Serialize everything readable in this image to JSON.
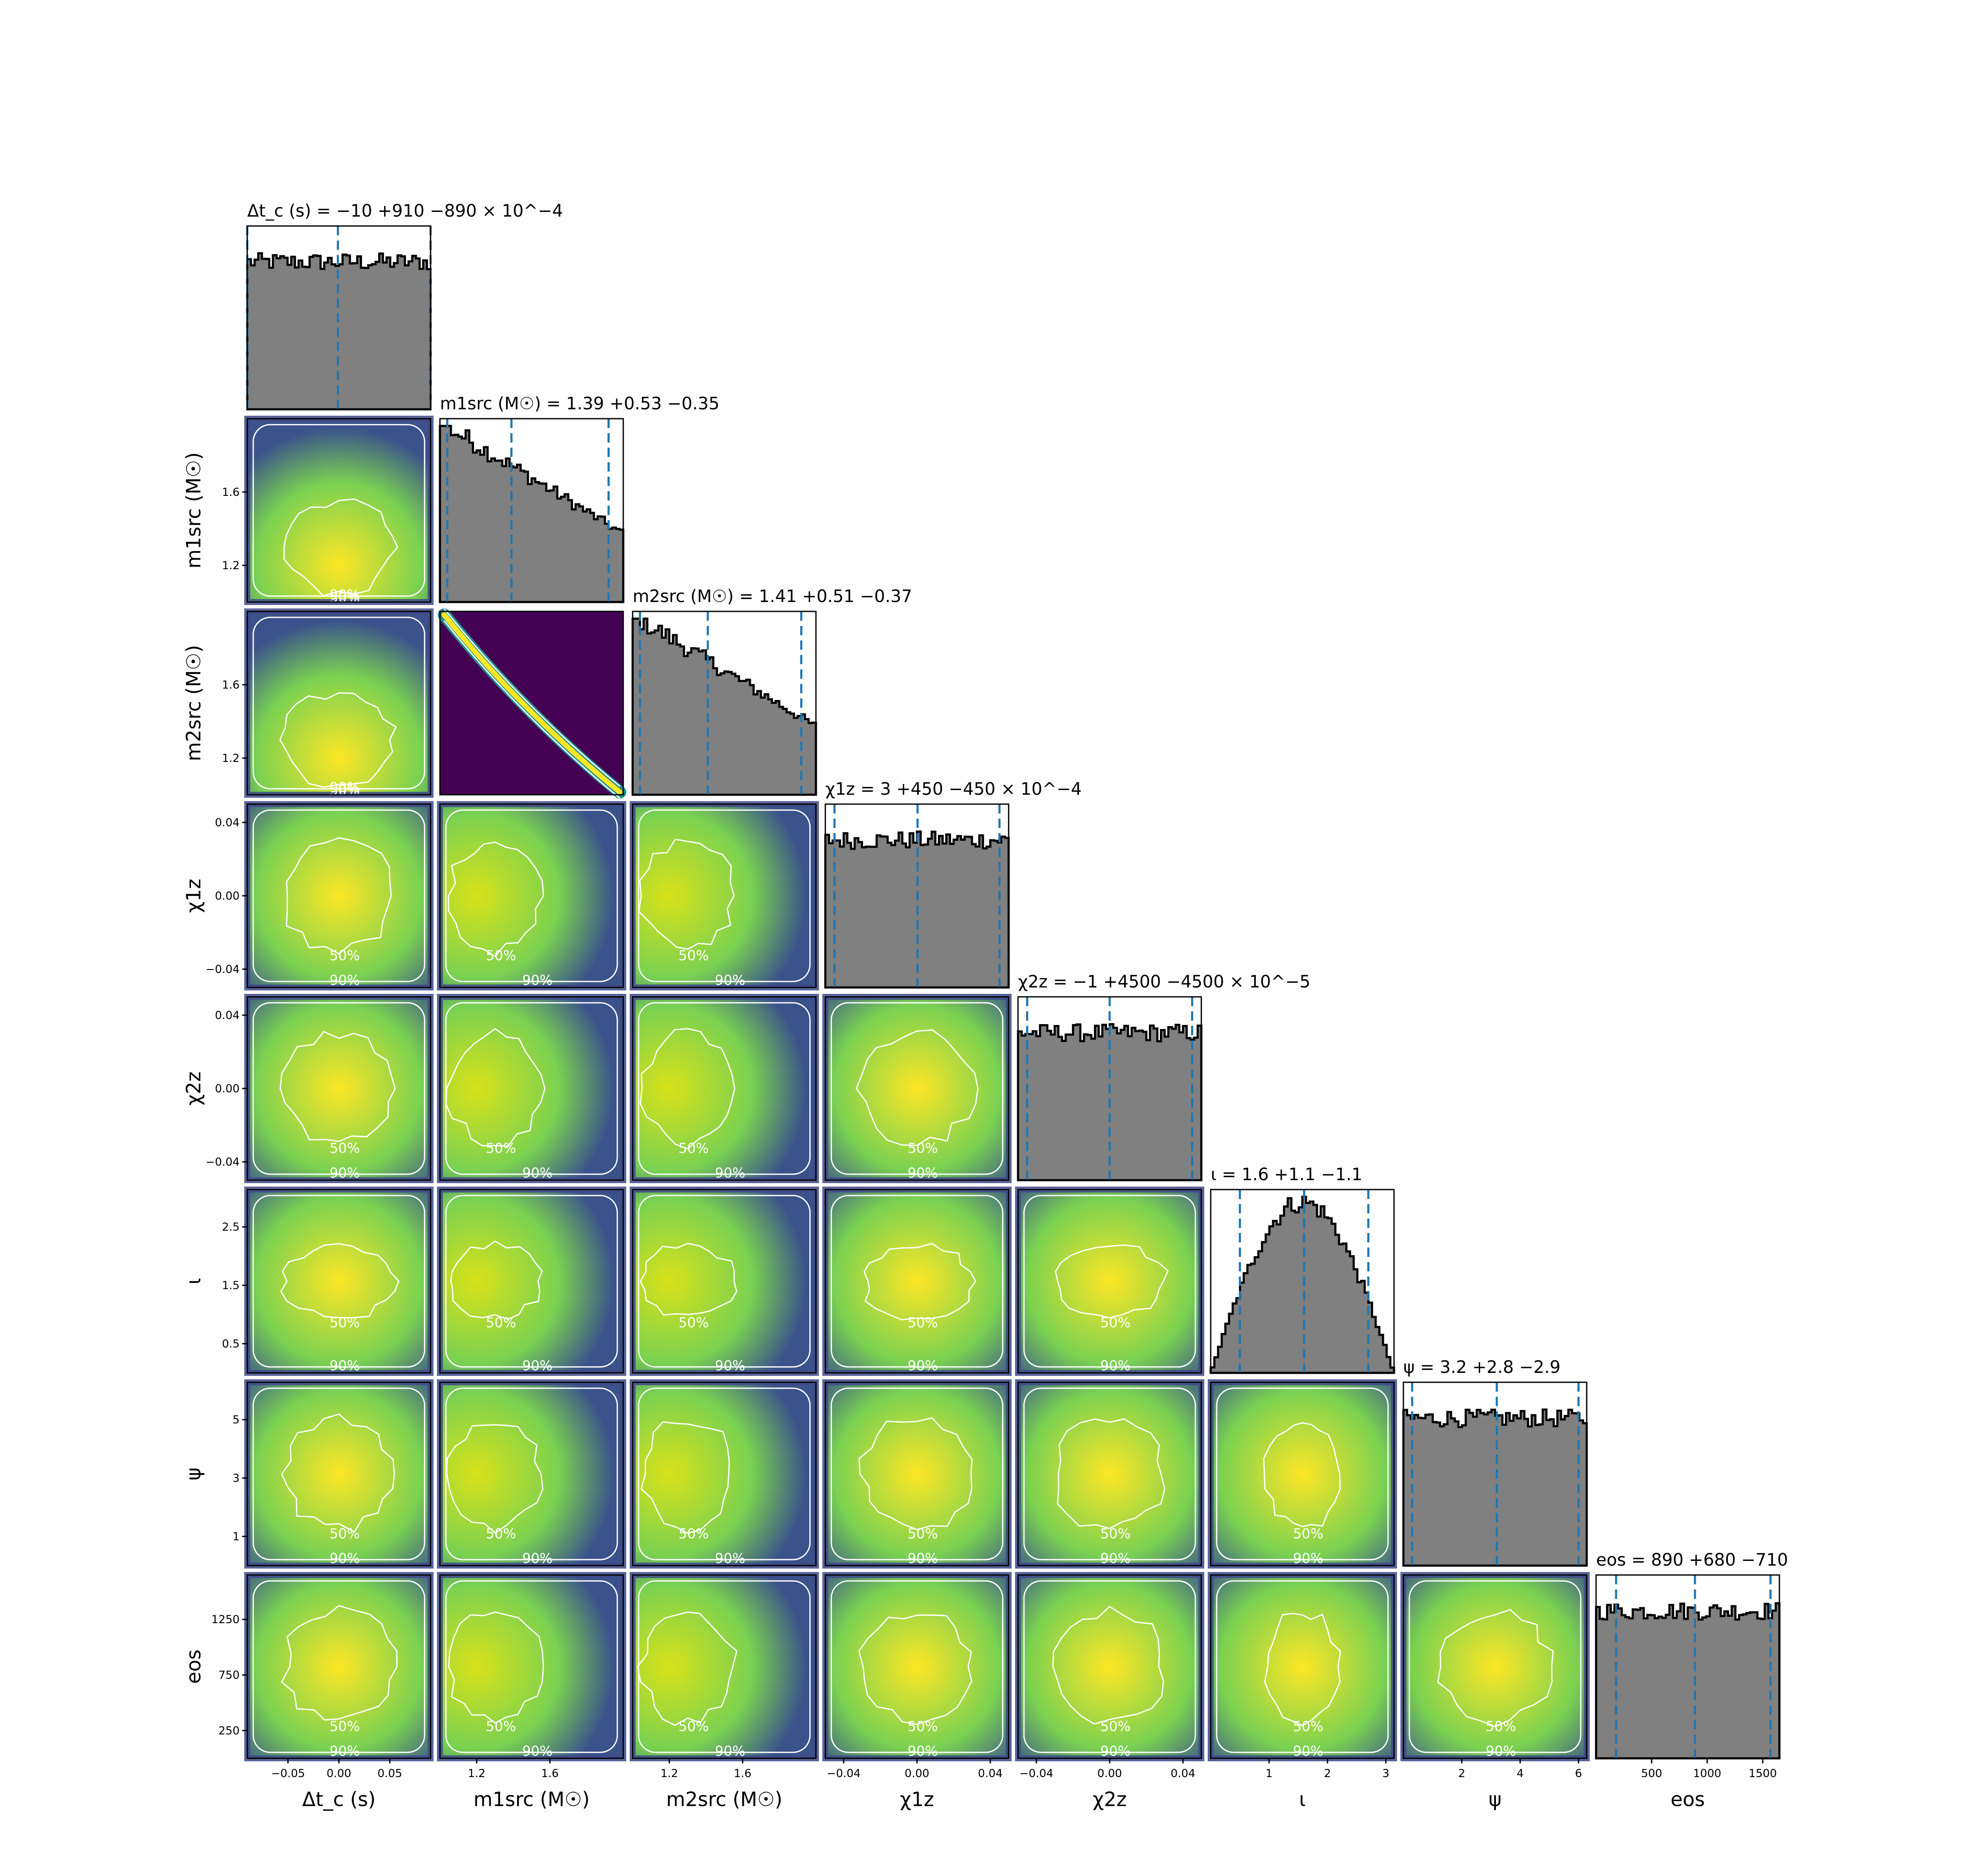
{
  "colors": {
    "hist_fill": "#808080",
    "hist_edge": "#000000",
    "quantile_line": "#1f77b4",
    "contour": "#ffffff",
    "colormap": "viridis"
  },
  "chart_data": {
    "type": "corner",
    "parameters": [
      {
        "key": "dtc",
        "label": "Δt_c (s)",
        "title": "Δt_c (s) = −10 +910 −890 × 10^−4",
        "range": [
          -0.09,
          0.09
        ],
        "ticks": [
          -0.05,
          0.0,
          0.05
        ],
        "tick_labels": [
          "−0.05",
          "0.00",
          "0.05"
        ],
        "median": -0.001,
        "lower": -0.09,
        "upper": 0.09,
        "hist_shape": "flat"
      },
      {
        "key": "m1",
        "label": "m1src (M☉)",
        "title": "m1src (M☉) = 1.39 +0.53 −0.35",
        "range": [
          1.0,
          2.0
        ],
        "ticks": [
          1.2,
          1.6
        ],
        "tick_labels": [
          "1.2",
          "1.6"
        ],
        "median": 1.39,
        "lower": 1.04,
        "upper": 1.92,
        "hist_shape": "decreasing"
      },
      {
        "key": "m2",
        "label": "m2src (M☉)",
        "title": "m2src (M☉) = 1.41 +0.51 −0.37",
        "range": [
          1.0,
          2.0
        ],
        "ticks": [
          1.2,
          1.6
        ],
        "tick_labels": [
          "1.2",
          "1.6"
        ],
        "median": 1.41,
        "lower": 1.04,
        "upper": 1.92,
        "hist_shape": "decreasing"
      },
      {
        "key": "chi1z",
        "label": "χ1z",
        "title": "χ1z = 3 +450 −450 × 10^−4",
        "range": [
          -0.05,
          0.05
        ],
        "ticks": [
          -0.04,
          0.0,
          0.04
        ],
        "tick_labels": [
          "−0.04",
          "0.00",
          "0.04"
        ],
        "median": 0.0003,
        "lower": -0.045,
        "upper": 0.045,
        "hist_shape": "flat"
      },
      {
        "key": "chi2z",
        "label": "χ2z",
        "title": "χ2z = −1 +4500 −4500 × 10^−5",
        "range": [
          -0.05,
          0.05
        ],
        "ticks": [
          -0.04,
          0.0,
          0.04
        ],
        "tick_labels": [
          "−0.04",
          "0.00",
          "0.04"
        ],
        "median": -1e-05,
        "lower": -0.045,
        "upper": 0.045,
        "hist_shape": "flat"
      },
      {
        "key": "iota",
        "label": "ι",
        "title": "ι = 1.6 +1.1 −1.1",
        "range": [
          0.0,
          3.14
        ],
        "ticks": [
          1,
          2,
          3
        ],
        "tick_labels": [
          "1",
          "2",
          "3"
        ],
        "median": 1.6,
        "lower": 0.5,
        "upper": 2.7,
        "hist_shape": "sine"
      },
      {
        "key": "psi",
        "label": "ψ",
        "title": "ψ = 3.2 +2.8 −2.9",
        "range": [
          0.0,
          6.28
        ],
        "ticks": [
          2,
          4,
          6
        ],
        "tick_labels": [
          "2",
          "4",
          "6"
        ],
        "median": 3.2,
        "lower": 0.3,
        "upper": 6.0,
        "hist_shape": "flat"
      },
      {
        "key": "eos",
        "label": "eos",
        "title": "eos = 890 +680 −710",
        "range": [
          0,
          1650
        ],
        "ticks": [
          500,
          1000,
          1500
        ],
        "tick_labels": [
          "500",
          "1000",
          "1500"
        ],
        "median": 890,
        "lower": 180,
        "upper": 1570,
        "hist_shape": "flat"
      }
    ],
    "row_ticks": {
      "m1": {
        "ticks": [
          1.2,
          1.6
        ],
        "tick_labels": [
          "1.2",
          "1.6"
        ]
      },
      "m2": {
        "ticks": [
          1.2,
          1.6
        ],
        "tick_labels": [
          "1.2",
          "1.6"
        ]
      },
      "chi1z": {
        "ticks": [
          -0.04,
          0.0,
          0.04
        ],
        "tick_labels": [
          "−0.04",
          "0.00",
          "0.04"
        ]
      },
      "chi2z": {
        "ticks": [
          -0.04,
          0.0,
          0.04
        ],
        "tick_labels": [
          "−0.04",
          "0.00",
          "0.04"
        ]
      },
      "iota": {
        "ticks": [
          0.5,
          1.5,
          2.5
        ],
        "tick_labels": [
          "0.5",
          "1.5",
          "2.5"
        ]
      },
      "psi": {
        "ticks": [
          1,
          3,
          5
        ],
        "tick_labels": [
          "1",
          "3",
          "5"
        ]
      },
      "eos": {
        "ticks": [
          250,
          750,
          1250
        ],
        "tick_labels": [
          "250",
          "750",
          "1250"
        ]
      }
    },
    "contour_levels": [
      "50%",
      "90%"
    ],
    "grid": false,
    "legend": "none"
  }
}
